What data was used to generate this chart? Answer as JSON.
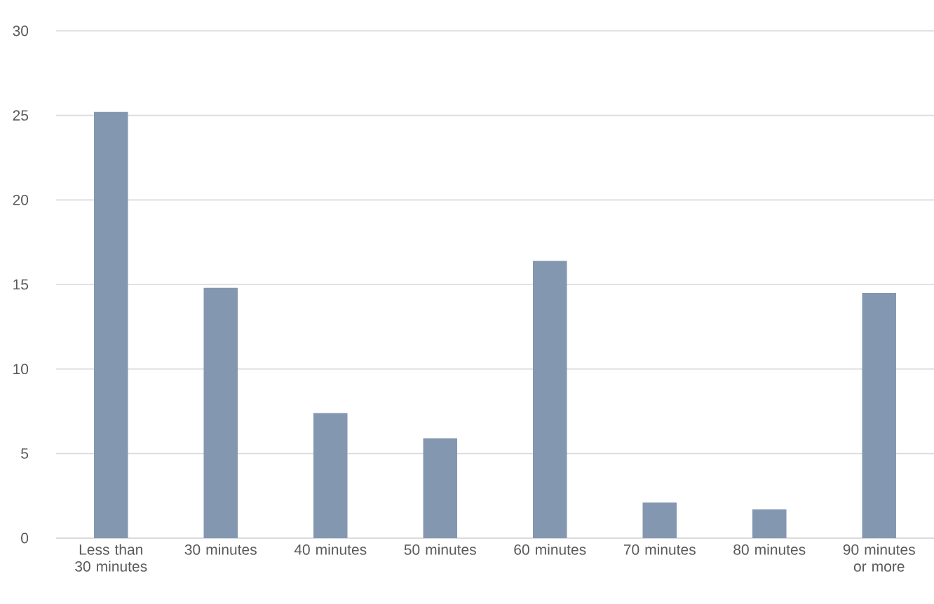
{
  "chart_data": {
    "type": "bar",
    "categories": [
      "Less than 30 minutes",
      "30 minutes",
      "40 minutes",
      "50 minutes",
      "60 minutes",
      "70 minutes",
      "80 minutes",
      "90 minutes or more"
    ],
    "values": [
      25.2,
      14.8,
      7.4,
      5.9,
      16.4,
      2.1,
      1.7,
      14.5
    ],
    "color": "#8497b0",
    "ylim": [
      0,
      30
    ],
    "yticks": [
      0,
      5,
      10,
      15,
      20,
      25,
      30
    ],
    "grid": "y"
  }
}
